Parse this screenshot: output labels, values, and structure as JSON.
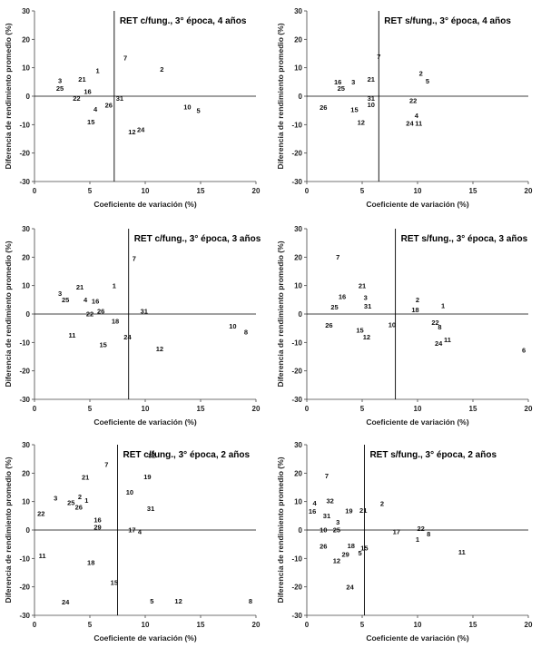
{
  "chart_data": [
    {
      "type": "scatter",
      "title": "RET c/fung., 3° época, 4 años",
      "xlabel": "Coeficiente de variación (%)",
      "ylabel": "Diferencia de rendimiento promedio (%)",
      "xlim": [
        0,
        20
      ],
      "ylim": [
        -30,
        30
      ],
      "xticks": [
        0,
        5,
        10,
        15,
        20
      ],
      "yticks": [
        -30,
        -20,
        -10,
        0,
        10,
        20,
        30
      ],
      "vline": 7.2,
      "hline": 0,
      "points": [
        {
          "label": "3",
          "x": 2.3,
          "y": 5.5
        },
        {
          "label": "25",
          "x": 2.3,
          "y": 2.8
        },
        {
          "label": "21",
          "x": 4.3,
          "y": 6.0
        },
        {
          "label": "1",
          "x": 5.7,
          "y": 9.0
        },
        {
          "label": "16",
          "x": 4.8,
          "y": 1.7
        },
        {
          "label": "22",
          "x": 3.8,
          "y": -0.8
        },
        {
          "label": "4",
          "x": 5.5,
          "y": -4.5
        },
        {
          "label": "15",
          "x": 5.1,
          "y": -9.0
        },
        {
          "label": "26",
          "x": 6.7,
          "y": -3.2
        },
        {
          "label": "31",
          "x": 7.7,
          "y": -0.7
        },
        {
          "label": "7",
          "x": 8.2,
          "y": 13.5
        },
        {
          "label": "2",
          "x": 11.5,
          "y": 9.5
        },
        {
          "label": "12",
          "x": 8.8,
          "y": -12.5
        },
        {
          "label": "24",
          "x": 9.6,
          "y": -11.8
        },
        {
          "label": "10",
          "x": 13.8,
          "y": -3.8
        },
        {
          "label": "5",
          "x": 14.8,
          "y": -5.0
        }
      ]
    },
    {
      "type": "scatter",
      "title": "RET s/fung., 3° época, 4 años",
      "xlabel": "Coeficiente de variación (%)",
      "ylabel": "Diferencia de rendimiento promedio (%)",
      "xlim": [
        0,
        20
      ],
      "ylim": [
        -30,
        30
      ],
      "xticks": [
        0,
        5,
        10,
        15,
        20
      ],
      "yticks": [
        -30,
        -20,
        -10,
        0,
        10,
        20,
        30
      ],
      "vline": 6.5,
      "hline": 0,
      "points": [
        {
          "label": "7",
          "x": 6.5,
          "y": 14.0
        },
        {
          "label": "16",
          "x": 2.8,
          "y": 5.0
        },
        {
          "label": "3",
          "x": 4.2,
          "y": 5.0
        },
        {
          "label": "25",
          "x": 3.1,
          "y": 2.8
        },
        {
          "label": "21",
          "x": 5.8,
          "y": 6.0
        },
        {
          "label": "31",
          "x": 5.8,
          "y": -0.8
        },
        {
          "label": "10",
          "x": 5.8,
          "y": -3.0
        },
        {
          "label": "26",
          "x": 1.5,
          "y": -4.0
        },
        {
          "label": "15",
          "x": 4.3,
          "y": -4.8
        },
        {
          "label": "12",
          "x": 4.9,
          "y": -9.2
        },
        {
          "label": "2",
          "x": 10.3,
          "y": 8.0
        },
        {
          "label": "5",
          "x": 10.9,
          "y": 5.3
        },
        {
          "label": "22",
          "x": 9.6,
          "y": -1.5
        },
        {
          "label": "4",
          "x": 9.9,
          "y": -6.8
        },
        {
          "label": "24",
          "x": 9.3,
          "y": -9.5
        },
        {
          "label": "11",
          "x": 10.1,
          "y": -9.5
        }
      ]
    },
    {
      "type": "scatter",
      "title": "RET c/fung., 3° época, 3 años",
      "xlabel": "Coeficiente de variación (%)",
      "ylabel": "Diferencia de rendimiento promedio (%)",
      "xlim": [
        0,
        20
      ],
      "ylim": [
        -30,
        30
      ],
      "xticks": [
        0,
        5,
        10,
        15,
        20
      ],
      "yticks": [
        -30,
        -20,
        -10,
        0,
        10,
        20,
        30
      ],
      "vline": 8.5,
      "hline": 0,
      "points": [
        {
          "label": "7",
          "x": 9.0,
          "y": 19.5
        },
        {
          "label": "3",
          "x": 2.3,
          "y": 7.3
        },
        {
          "label": "25",
          "x": 2.8,
          "y": 5.0
        },
        {
          "label": "21",
          "x": 4.1,
          "y": 9.5
        },
        {
          "label": "1",
          "x": 7.2,
          "y": 10.0
        },
        {
          "label": "4",
          "x": 4.6,
          "y": 5.0
        },
        {
          "label": "16",
          "x": 5.5,
          "y": 4.5
        },
        {
          "label": "26",
          "x": 6.0,
          "y": 1.0
        },
        {
          "label": "22",
          "x": 5.0,
          "y": 0.0
        },
        {
          "label": "18",
          "x": 7.3,
          "y": -2.5
        },
        {
          "label": "31",
          "x": 9.9,
          "y": 1.0
        },
        {
          "label": "11",
          "x": 3.4,
          "y": -7.5
        },
        {
          "label": "15",
          "x": 6.2,
          "y": -10.8
        },
        {
          "label": "24",
          "x": 8.4,
          "y": -8.0
        },
        {
          "label": "12",
          "x": 11.3,
          "y": -12.3
        },
        {
          "label": "10",
          "x": 17.9,
          "y": -4.3
        },
        {
          "label": "8",
          "x": 19.1,
          "y": -6.3
        }
      ]
    },
    {
      "type": "scatter",
      "title": "RET s/fung., 3° época, 3 años",
      "xlabel": "Coeficiente de variación (%)",
      "ylabel": "Diferencia de rendimiento promedio (%)",
      "xlim": [
        0,
        20
      ],
      "ylim": [
        -30,
        30
      ],
      "xticks": [
        0,
        5,
        10,
        15,
        20
      ],
      "yticks": [
        -30,
        -20,
        -10,
        0,
        10,
        20,
        30
      ],
      "vline": 8.0,
      "hline": 0,
      "points": [
        {
          "label": "7",
          "x": 2.8,
          "y": 20.0
        },
        {
          "label": "21",
          "x": 5.0,
          "y": 10.0
        },
        {
          "label": "16",
          "x": 3.2,
          "y": 6.2
        },
        {
          "label": "3",
          "x": 5.3,
          "y": 5.8
        },
        {
          "label": "25",
          "x": 2.5,
          "y": 2.5
        },
        {
          "label": "31",
          "x": 5.5,
          "y": 2.7
        },
        {
          "label": "26",
          "x": 2.0,
          "y": -4.0
        },
        {
          "label": "15",
          "x": 4.8,
          "y": -5.7
        },
        {
          "label": "12",
          "x": 5.4,
          "y": -8.0
        },
        {
          "label": "10",
          "x": 7.7,
          "y": -3.7
        },
        {
          "label": "2",
          "x": 10.0,
          "y": 5.0
        },
        {
          "label": "18",
          "x": 9.8,
          "y": 1.5
        },
        {
          "label": "1",
          "x": 12.3,
          "y": 3.0
        },
        {
          "label": "22",
          "x": 11.6,
          "y": -3.0
        },
        {
          "label": "8",
          "x": 12.0,
          "y": -4.5
        },
        {
          "label": "24",
          "x": 11.9,
          "y": -10.3
        },
        {
          "label": "11",
          "x": 12.7,
          "y": -9.0
        },
        {
          "label": "6",
          "x": 19.6,
          "y": -12.7
        }
      ]
    },
    {
      "type": "scatter",
      "title": "RET c/fung., 3° época, 2 años",
      "xlabel": "Coeficiente de variación (%)",
      "ylabel": "Diferencia de rendimiento promedio (%)",
      "xlim": [
        0,
        20
      ],
      "ylim": [
        -30,
        30
      ],
      "xticks": [
        0,
        5,
        10,
        15,
        20
      ],
      "yticks": [
        -30,
        -20,
        -10,
        0,
        10,
        20,
        30
      ],
      "vline": 7.5,
      "hline": 0,
      "points": [
        {
          "label": "7",
          "x": 6.5,
          "y": 23.0
        },
        {
          "label": "22",
          "x": 0.6,
          "y": 5.8
        },
        {
          "label": "3",
          "x": 1.9,
          "y": 11.2
        },
        {
          "label": "21",
          "x": 4.6,
          "y": 18.5
        },
        {
          "label": "25",
          "x": 3.3,
          "y": 9.6
        },
        {
          "label": "2",
          "x": 4.1,
          "y": 11.7
        },
        {
          "label": "26",
          "x": 4.0,
          "y": 8.0
        },
        {
          "label": "1",
          "x": 4.7,
          "y": 10.5
        },
        {
          "label": "16",
          "x": 5.7,
          "y": 3.5
        },
        {
          "label": "29",
          "x": 5.7,
          "y": 1.0
        },
        {
          "label": "11",
          "x": 0.7,
          "y": -9.0
        },
        {
          "label": "18",
          "x": 5.1,
          "y": -11.5
        },
        {
          "label": "15",
          "x": 7.2,
          "y": -18.5
        },
        {
          "label": "24",
          "x": 2.8,
          "y": -25.3
        },
        {
          "label": "10",
          "x": 8.6,
          "y": 13.3
        },
        {
          "label": "32",
          "x": 10.6,
          "y": 26.3
        },
        {
          "label": "19",
          "x": 10.2,
          "y": 18.7
        },
        {
          "label": "31",
          "x": 10.5,
          "y": 7.5
        },
        {
          "label": "17",
          "x": 8.8,
          "y": 0.0
        },
        {
          "label": "4",
          "x": 9.5,
          "y": -0.5
        },
        {
          "label": "5",
          "x": 10.6,
          "y": -25.0
        },
        {
          "label": "12",
          "x": 13.0,
          "y": -25.0
        },
        {
          "label": "8",
          "x": 19.5,
          "y": -25.0
        }
      ]
    },
    {
      "type": "scatter",
      "title": "RET s/fung., 3° época, 2 años",
      "xlabel": "Coeficiente de variación (%)",
      "ylabel": "Diferencia de rendimiento promedio (%)",
      "xlim": [
        0,
        20
      ],
      "ylim": [
        -30,
        30
      ],
      "xticks": [
        0,
        5,
        10,
        15,
        20
      ],
      "yticks": [
        -30,
        -20,
        -10,
        0,
        10,
        20,
        30
      ],
      "vline": 5.2,
      "hline": 0,
      "points": [
        {
          "label": "7",
          "x": 1.8,
          "y": 19.0
        },
        {
          "label": "4",
          "x": 0.7,
          "y": 9.5
        },
        {
          "label": "32",
          "x": 2.1,
          "y": 10.2
        },
        {
          "label": "16",
          "x": 0.5,
          "y": 6.6
        },
        {
          "label": "31",
          "x": 1.8,
          "y": 5.0
        },
        {
          "label": "19",
          "x": 3.8,
          "y": 6.7
        },
        {
          "label": "21",
          "x": 5.1,
          "y": 7.0
        },
        {
          "label": "2",
          "x": 6.8,
          "y": 9.3
        },
        {
          "label": "3",
          "x": 2.8,
          "y": 2.8
        },
        {
          "label": "10",
          "x": 1.5,
          "y": 0.0
        },
        {
          "label": "25",
          "x": 2.7,
          "y": 0.0
        },
        {
          "label": "26",
          "x": 1.5,
          "y": -5.7
        },
        {
          "label": "18",
          "x": 4.0,
          "y": -5.5
        },
        {
          "label": "15",
          "x": 5.2,
          "y": -6.3
        },
        {
          "label": "5",
          "x": 4.8,
          "y": -8.0
        },
        {
          "label": "29",
          "x": 3.5,
          "y": -8.6
        },
        {
          "label": "12",
          "x": 2.7,
          "y": -10.8
        },
        {
          "label": "24",
          "x": 3.9,
          "y": -20.0
        },
        {
          "label": "17",
          "x": 8.1,
          "y": -0.5
        },
        {
          "label": "22",
          "x": 10.3,
          "y": 0.5
        },
        {
          "label": "8",
          "x": 11.0,
          "y": -1.4
        },
        {
          "label": "1",
          "x": 10.0,
          "y": -3.3
        },
        {
          "label": "11",
          "x": 14.0,
          "y": -7.8
        }
      ]
    }
  ]
}
